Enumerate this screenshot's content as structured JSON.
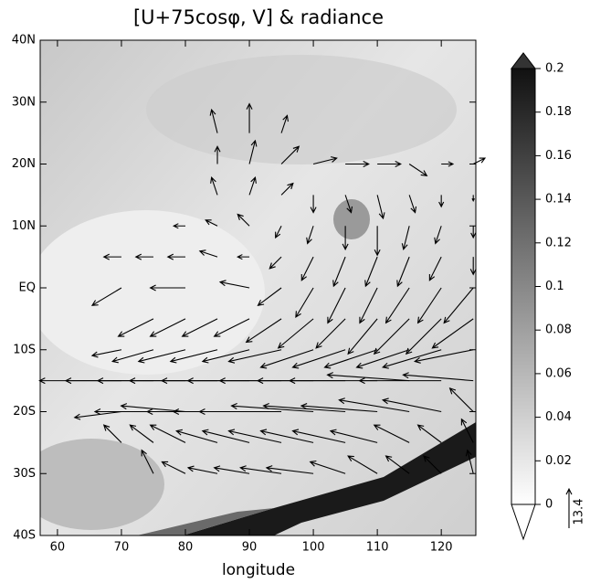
{
  "chart_data": {
    "type": "quiver",
    "title": "[U+75cosφ, V] & radiance",
    "x_label": "longitude",
    "xlim": [
      57.3,
      125.4
    ],
    "xticks": [
      60,
      70,
      80,
      90,
      100,
      110,
      120
    ],
    "ylim": [
      -40,
      40
    ],
    "yticks": [
      {
        "value": -40,
        "label": "40S"
      },
      {
        "value": -30,
        "label": "30S"
      },
      {
        "value": -20,
        "label": "20S"
      },
      {
        "value": -10,
        "label": "10S"
      },
      {
        "value": 0,
        "label": "EQ"
      },
      {
        "value": 10,
        "label": "10N"
      },
      {
        "value": 20,
        "label": "20N"
      },
      {
        "value": 30,
        "label": "30N"
      },
      {
        "value": 40,
        "label": "40N"
      }
    ],
    "lons": [
      70,
      75,
      80,
      85,
      90,
      95,
      100,
      105,
      110,
      115,
      120,
      125
    ],
    "lats": [
      25,
      20,
      15,
      10,
      5,
      0,
      -5,
      -10,
      -15,
      -20,
      -25,
      -30
    ],
    "u": [
      [
        null,
        null,
        null,
        -2,
        0,
        2,
        null,
        null,
        null,
        null,
        null,
        null
      ],
      [
        null,
        null,
        null,
        0,
        2,
        6,
        8,
        8,
        8,
        6,
        4,
        4
      ],
      [
        null,
        null,
        null,
        -2,
        2,
        4,
        0,
        2,
        2,
        2,
        0,
        0
      ],
      [
        null,
        null,
        -4,
        -4,
        -4,
        -2,
        -2,
        0,
        0,
        -2,
        -2,
        0
      ],
      [
        -6,
        -6,
        -6,
        -6,
        -4,
        -4,
        -4,
        -4,
        -4,
        -4,
        -4,
        0
      ],
      [
        -10,
        null,
        -12,
        null,
        -10,
        -8,
        -6,
        -6,
        -6,
        -8,
        -8,
        -10
      ],
      [
        null,
        -12,
        -12,
        -12,
        -12,
        -12,
        -12,
        -10,
        -10,
        -12,
        -12,
        -14
      ],
      [
        -10,
        -14,
        -16,
        -16,
        -16,
        -18,
        -18,
        -18,
        -18,
        -18,
        -20,
        -20
      ],
      [
        -28,
        -30,
        -30,
        -30,
        -30,
        -32,
        -32,
        -30,
        -30,
        -28,
        -28,
        -24
      ],
      [
        -16,
        -20,
        -22,
        -24,
        -26,
        -28,
        -28,
        -28,
        -26,
        -24,
        -20,
        -8
      ],
      [
        -6,
        -8,
        -12,
        -14,
        -16,
        -18,
        -18,
        -18,
        -16,
        -12,
        -8,
        -4
      ],
      [
        null,
        -4,
        -8,
        -10,
        -12,
        -14,
        -16,
        -12,
        -10,
        -8,
        -6,
        -2
      ]
    ],
    "v": [
      [
        null,
        null,
        null,
        8,
        10,
        6,
        null,
        null,
        null,
        null,
        null,
        null
      ],
      [
        null,
        null,
        null,
        6,
        8,
        6,
        2,
        0,
        0,
        -4,
        0,
        2
      ],
      [
        null,
        null,
        null,
        6,
        6,
        4,
        -6,
        -6,
        -8,
        -6,
        -4,
        -2
      ],
      [
        null,
        null,
        0,
        2,
        4,
        -4,
        -6,
        -8,
        -10,
        -8,
        -6,
        -4
      ],
      [
        0,
        0,
        0,
        2,
        0,
        -4,
        -8,
        -10,
        -10,
        -10,
        -8,
        -6
      ],
      [
        -6,
        null,
        0,
        null,
        2,
        -6,
        -10,
        -12,
        -12,
        -12,
        -12,
        -12
      ],
      [
        null,
        -6,
        -6,
        -6,
        -6,
        -8,
        -10,
        -10,
        -12,
        -12,
        -12,
        -10
      ],
      [
        -2,
        -4,
        -4,
        -4,
        -4,
        -4,
        -6,
        -6,
        -6,
        -6,
        -6,
        -4
      ],
      [
        0,
        0,
        0,
        0,
        0,
        0,
        0,
        0,
        0,
        2,
        0,
        2
      ],
      [
        -2,
        0,
        2,
        0,
        0,
        0,
        2,
        2,
        2,
        4,
        4,
        8
      ],
      [
        6,
        6,
        6,
        4,
        4,
        4,
        4,
        4,
        4,
        6,
        6,
        8
      ],
      [
        null,
        8,
        4,
        2,
        2,
        2,
        2,
        4,
        6,
        6,
        6,
        8
      ]
    ],
    "reference_vector": 13.4,
    "colorbar": {
      "clim": [
        0,
        0.2
      ],
      "ticks": [
        0,
        0.02,
        0.04,
        0.06,
        0.08,
        0.1,
        0.12,
        0.14,
        0.16,
        0.18,
        0.2
      ]
    }
  }
}
